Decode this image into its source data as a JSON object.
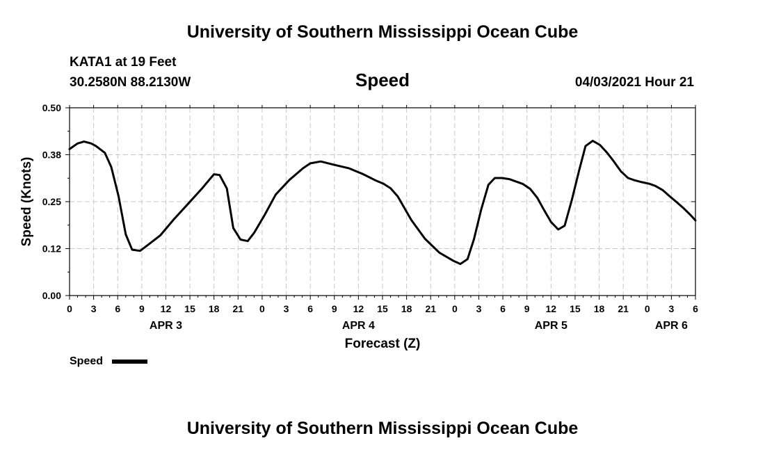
{
  "page": {
    "title_top": "University of Southern Mississippi Ocean Cube",
    "title_bottom": "University of Southern Mississippi Ocean Cube",
    "station": "KATA1 at 19 Feet",
    "location": "30.2580N  88.2130W",
    "variable": "Speed",
    "timestamp": "04/03/2021 Hour 21"
  },
  "chart_data": {
    "type": "line",
    "title": "Speed",
    "xlabel": "Forecast (Z)",
    "ylabel": "Speed (Knots)",
    "xlim": [
      0,
      78
    ],
    "ylim": [
      0,
      0.5
    ],
    "x_unit": "hours from APR 3 00Z",
    "grid": true,
    "legend": "bottom-left",
    "line_color": "#000000",
    "yticks": [
      {
        "v": 0,
        "label": "0.00"
      },
      {
        "v": 0.125,
        "label": "0.12"
      },
      {
        "v": 0.25,
        "label": "0.25"
      },
      {
        "v": 0.375,
        "label": "0.38"
      },
      {
        "v": 0.5,
        "label": "0.50"
      }
    ],
    "xticks": [
      {
        "h": 0,
        "label": "0"
      },
      {
        "h": 3,
        "label": "3"
      },
      {
        "h": 6,
        "label": "6"
      },
      {
        "h": 9,
        "label": "9"
      },
      {
        "h": 12,
        "label": "12"
      },
      {
        "h": 15,
        "label": "15"
      },
      {
        "h": 18,
        "label": "18"
      },
      {
        "h": 21,
        "label": "21"
      },
      {
        "h": 24,
        "label": "0"
      },
      {
        "h": 27,
        "label": "3"
      },
      {
        "h": 30,
        "label": "6"
      },
      {
        "h": 33,
        "label": "9"
      },
      {
        "h": 36,
        "label": "12"
      },
      {
        "h": 39,
        "label": "15"
      },
      {
        "h": 42,
        "label": "18"
      },
      {
        "h": 45,
        "label": "21"
      },
      {
        "h": 48,
        "label": "0"
      },
      {
        "h": 51,
        "label": "3"
      },
      {
        "h": 54,
        "label": "6"
      },
      {
        "h": 57,
        "label": "9"
      },
      {
        "h": 60,
        "label": "12"
      },
      {
        "h": 63,
        "label": "15"
      },
      {
        "h": 66,
        "label": "18"
      },
      {
        "h": 69,
        "label": "21"
      },
      {
        "h": 72,
        "label": "0"
      },
      {
        "h": 75,
        "label": "3"
      },
      {
        "h": 78,
        "label": "6"
      }
    ],
    "date_labels": [
      {
        "h": 12,
        "label": "APR 3"
      },
      {
        "h": 36,
        "label": "APR 4"
      },
      {
        "h": 60,
        "label": "APR 5"
      },
      {
        "h": 75,
        "label": "APR 6"
      }
    ],
    "series": [
      {
        "name": "Speed",
        "x": [
          0,
          1,
          1.8,
          2.7,
          3.3,
          4.4,
          5.2,
          6.1,
          7.0,
          7.8,
          8.8,
          9.6,
          11.3,
          13.0,
          14.8,
          16.5,
          17.4,
          18.0,
          18.7,
          19.6,
          20.4,
          21.3,
          22.2,
          23.0,
          24.3,
          25.7,
          27.4,
          29.1,
          30.0,
          31.3,
          33.0,
          34.8,
          36.5,
          38.2,
          39.1,
          40.0,
          40.9,
          42.6,
          44.3,
          46.1,
          47.8,
          48.7,
          49.6,
          50.4,
          51.3,
          52.2,
          53.0,
          53.9,
          54.8,
          56.5,
          57.4,
          58.3,
          59.1,
          60.0,
          60.9,
          61.7,
          62.6,
          63.5,
          64.3,
          65.2,
          66.1,
          67.0,
          67.8,
          68.7,
          69.6,
          70.4,
          71.3,
          72.2,
          73.0,
          73.9,
          74.8,
          75.7,
          76.5,
          77.4,
          78.0
        ],
        "y": [
          0.39,
          0.405,
          0.41,
          0.405,
          0.398,
          0.38,
          0.342,
          0.265,
          0.163,
          0.122,
          0.119,
          0.132,
          0.16,
          0.203,
          0.245,
          0.285,
          0.308,
          0.323,
          0.321,
          0.285,
          0.18,
          0.149,
          0.145,
          0.167,
          0.214,
          0.269,
          0.308,
          0.339,
          0.352,
          0.357,
          0.348,
          0.339,
          0.324,
          0.306,
          0.298,
          0.286,
          0.264,
          0.201,
          0.151,
          0.114,
          0.093,
          0.084,
          0.097,
          0.15,
          0.229,
          0.295,
          0.313,
          0.313,
          0.31,
          0.297,
          0.284,
          0.26,
          0.229,
          0.196,
          0.176,
          0.186,
          0.255,
          0.333,
          0.398,
          0.412,
          0.401,
          0.38,
          0.358,
          0.331,
          0.313,
          0.307,
          0.302,
          0.298,
          0.292,
          0.281,
          0.264,
          0.248,
          0.233,
          0.214,
          0.2
        ]
      }
    ]
  }
}
